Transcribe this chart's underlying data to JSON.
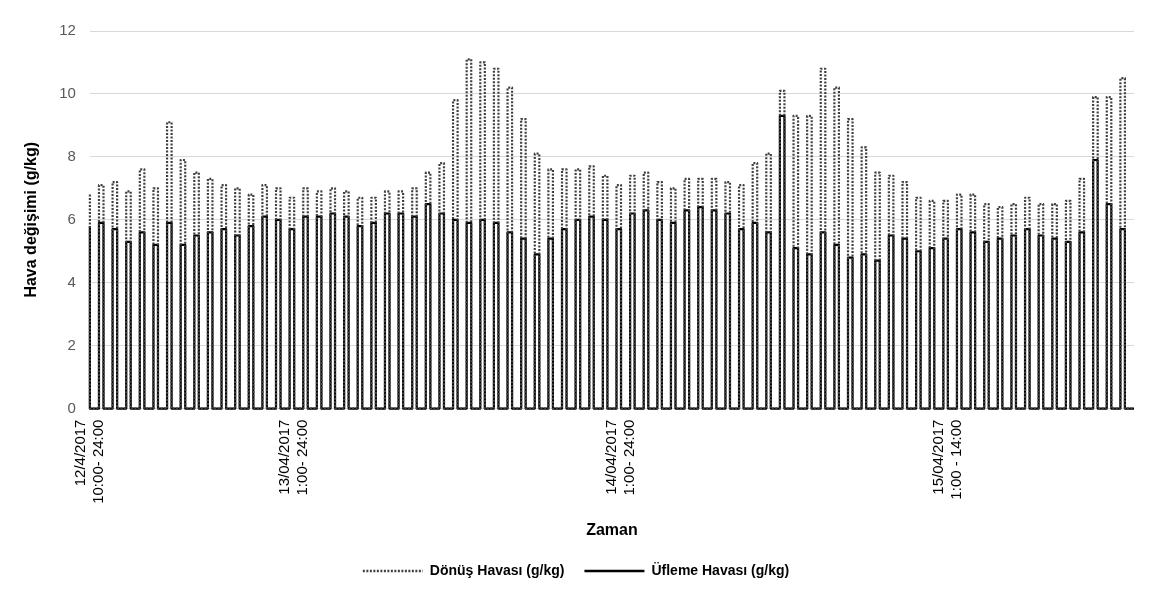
{
  "chart_data": {
    "type": "step",
    "xlabel": "Zaman",
    "ylabel": "Hava değişimi (g/kg)",
    "categories": [
      "12/4/2017\n10:00- 24:00",
      null,
      null,
      null,
      null,
      null,
      null,
      null,
      null,
      null,
      null,
      null,
      null,
      null,
      null,
      null,
      null,
      null,
      null,
      null,
      null,
      null,
      null,
      null,
      null,
      null,
      null,
      null,
      null,
      null,
      null,
      null,
      null,
      null,
      null,
      null,
      null,
      null,
      null,
      null,
      null,
      null,
      null,
      null,
      null,
      "13/04/2017\n1:00- 24:00",
      null,
      null,
      null,
      null,
      null,
      null,
      null,
      null,
      null,
      null,
      null,
      null,
      null,
      null,
      null,
      null,
      null,
      null,
      null,
      null,
      null,
      null,
      null,
      null,
      null,
      null,
      null,
      null,
      null,
      null,
      null,
      null,
      null,
      null,
      null,
      null,
      null,
      null,
      null,
      null,
      null,
      null,
      null,
      null,
      null,
      null,
      null,
      null,
      null,
      null,
      null,
      null,
      null,
      null,
      null,
      null,
      null,
      null,
      null,
      null,
      null,
      null,
      null,
      null,
      null,
      null,
      null,
      null,
      null,
      null,
      null,
      "14/04/2017\n1:00- 24:00",
      null,
      null,
      null,
      null,
      null,
      null,
      null,
      null,
      null,
      null,
      null,
      null,
      null,
      null,
      null,
      null,
      null,
      null,
      null,
      null,
      null,
      null,
      null,
      null,
      null,
      null,
      null,
      null,
      null,
      null,
      null,
      null,
      null,
      null,
      null,
      null,
      null,
      null,
      null,
      null,
      null,
      null,
      null,
      null,
      null,
      null,
      null,
      null,
      null,
      null,
      null,
      null,
      null,
      null,
      null,
      null,
      null,
      null,
      null,
      null,
      null,
      null,
      null,
      null,
      null,
      null,
      null,
      null,
      null,
      null,
      null,
      "15/04/2017\n1:00 - 14:00",
      null,
      null,
      null,
      null,
      null,
      null,
      null,
      null,
      null,
      null,
      null,
      null,
      null,
      null,
      null,
      null,
      null,
      null,
      null,
      null,
      null,
      null,
      null,
      null,
      null,
      null,
      null,
      null,
      null,
      null,
      null,
      null,
      null,
      null,
      null,
      null,
      null,
      null,
      null,
      null,
      null
    ],
    "series": [
      {
        "name": "Dönüş Havası (g/kg)",
        "color": "#404040",
        "line_style": "dotted",
        "values": [
          6.8,
          0,
          0,
          7.1,
          0,
          0,
          7.2,
          0,
          0,
          6.9,
          0,
          0,
          7.6,
          0,
          0,
          7.0,
          0,
          0,
          9.1,
          0,
          0,
          7.9,
          0,
          0,
          7.5,
          0,
          0,
          7.3,
          0,
          0,
          7.1,
          0,
          0,
          7.0,
          0,
          0,
          6.8,
          0,
          0,
          7.1,
          0,
          0,
          7.0,
          0,
          0,
          6.7,
          0,
          0,
          7.0,
          0,
          0,
          6.9,
          0,
          0,
          7.0,
          0,
          0,
          6.9,
          0,
          0,
          6.7,
          0,
          0,
          6.7,
          0,
          0,
          6.9,
          0,
          0,
          6.9,
          0,
          0,
          7.0,
          0,
          0,
          7.5,
          0,
          0,
          7.8,
          0,
          0,
          9.8,
          0,
          0,
          11.1,
          0,
          0,
          11.0,
          0,
          0,
          10.8,
          0,
          0,
          10.2,
          0,
          0,
          9.2,
          0,
          0,
          8.1,
          0,
          0,
          7.6,
          0,
          0,
          7.6,
          0,
          0,
          7.6,
          0,
          0,
          7.7,
          0,
          0,
          7.4,
          0,
          0,
          7.1,
          0,
          0,
          7.4,
          0,
          0,
          7.5,
          0,
          0,
          7.2,
          0,
          0,
          7.0,
          0,
          0,
          7.3,
          0,
          0,
          7.3,
          0,
          0,
          7.3,
          0,
          0,
          7.2,
          0,
          0,
          7.1,
          0,
          0,
          7.8,
          0,
          0,
          8.1,
          0,
          0,
          10.1,
          0,
          0,
          9.3,
          0,
          0,
          9.3,
          0,
          0,
          10.8,
          0,
          0,
          10.2,
          0,
          0,
          9.2,
          0,
          0,
          8.3,
          0,
          0,
          7.5,
          0,
          0,
          7.4,
          0,
          0,
          7.2,
          0,
          0,
          6.7,
          0,
          0,
          6.6,
          0,
          0,
          6.6,
          0,
          0,
          6.8,
          0,
          0,
          6.8,
          0,
          0,
          6.5,
          0,
          0,
          6.4,
          0,
          0,
          6.5,
          0,
          0,
          6.7,
          0,
          0,
          6.5,
          0,
          0,
          6.5,
          0,
          0,
          6.6,
          0,
          0,
          7.3,
          0,
          0,
          9.9,
          0,
          0,
          9.9,
          0,
          0,
          10.5,
          0,
          0
        ]
      },
      {
        "name": "Üfleme Havası (g/kg)",
        "color": "#000000",
        "line_style": "solid",
        "values": [
          5.8,
          0,
          0,
          5.9,
          0,
          0,
          5.7,
          0,
          0,
          5.3,
          0,
          0,
          5.6,
          0,
          0,
          5.2,
          0,
          0,
          5.9,
          0,
          0,
          5.2,
          0,
          0,
          5.5,
          0,
          0,
          5.6,
          0,
          0,
          5.7,
          0,
          0,
          5.5,
          0,
          0,
          5.8,
          0,
          0,
          6.1,
          0,
          0,
          6.0,
          0,
          0,
          5.7,
          0,
          0,
          6.1,
          0,
          0,
          6.1,
          0,
          0,
          6.2,
          0,
          0,
          6.1,
          0,
          0,
          5.8,
          0,
          0,
          5.9,
          0,
          0,
          6.2,
          0,
          0,
          6.2,
          0,
          0,
          6.1,
          0,
          0,
          6.5,
          0,
          0,
          6.2,
          0,
          0,
          6.0,
          0,
          0,
          5.9,
          0,
          0,
          6.0,
          0,
          0,
          5.9,
          0,
          0,
          5.6,
          0,
          0,
          5.4,
          0,
          0,
          4.9,
          0,
          0,
          5.4,
          0,
          0,
          5.7,
          0,
          0,
          6.0,
          0,
          0,
          6.1,
          0,
          0,
          6.0,
          0,
          0,
          5.7,
          0,
          0,
          6.2,
          0,
          0,
          6.3,
          0,
          0,
          6.0,
          0,
          0,
          5.9,
          0,
          0,
          6.3,
          0,
          0,
          6.4,
          0,
          0,
          6.3,
          0,
          0,
          6.2,
          0,
          0,
          5.7,
          0,
          0,
          5.9,
          0,
          0,
          5.6,
          0,
          0,
          9.3,
          0,
          0,
          5.1,
          0,
          0,
          4.9,
          0,
          0,
          5.6,
          0,
          0,
          5.2,
          0,
          0,
          4.8,
          0,
          0,
          4.9,
          0,
          0,
          4.7,
          0,
          0,
          5.5,
          0,
          0,
          5.4,
          0,
          0,
          5.0,
          0,
          0,
          5.1,
          0,
          0,
          5.4,
          0,
          0,
          5.7,
          0,
          0,
          5.6,
          0,
          0,
          5.3,
          0,
          0,
          5.4,
          0,
          0,
          5.5,
          0,
          0,
          5.7,
          0,
          0,
          5.5,
          0,
          0,
          5.4,
          0,
          0,
          5.3,
          0,
          0,
          5.6,
          0,
          0,
          7.9,
          0,
          0,
          6.5,
          0,
          0,
          5.7,
          0,
          0
        ]
      }
    ],
    "ylim": [
      0,
      12
    ],
    "yticks": [
      0,
      2,
      4,
      6,
      8,
      10,
      12
    ],
    "grid": "y",
    "legend": "bottom"
  }
}
